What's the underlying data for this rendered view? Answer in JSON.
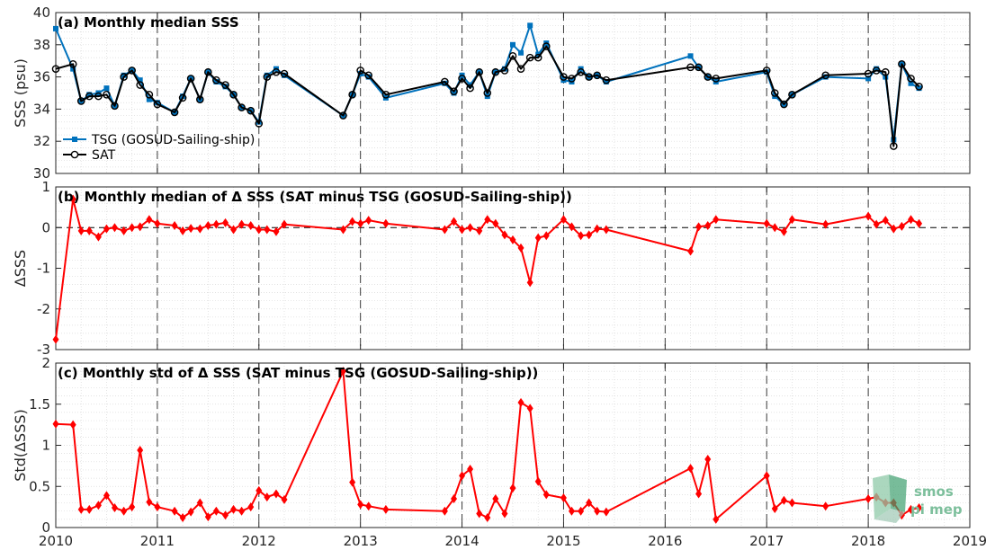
{
  "chart_data": [
    {
      "type": "line",
      "title": "(a) Monthly median SSS",
      "xlabel": "",
      "ylabel": "SSS (psu)",
      "xlim": [
        2010,
        2019
      ],
      "ylim": [
        30,
        40
      ],
      "yticks": [
        30,
        32,
        34,
        36,
        38,
        40
      ],
      "grid": "minor dotted, dashed vertical lines at year boundaries",
      "legend_position": "lower-left",
      "series": [
        {
          "name": "TSG (GOSUD-Sailing-ship)",
          "color": "#0072BD",
          "marker": "filled-square",
          "x": [
            2010.0,
            2010.17,
            2010.25,
            2010.33,
            2010.42,
            2010.5,
            2010.58,
            2010.67,
            2010.75,
            2010.83,
            2010.92,
            2011.0,
            2011.17,
            2011.25,
            2011.33,
            2011.42,
            2011.5,
            2011.58,
            2011.67,
            2011.75,
            2011.83,
            2011.92,
            2012.0,
            2012.08,
            2012.17,
            2012.25,
            2012.83,
            2012.92,
            2013.0,
            2013.08,
            2013.25,
            2013.83,
            2013.92,
            2014.0,
            2014.08,
            2014.17,
            2014.25,
            2014.33,
            2014.42,
            2014.5,
            2014.58,
            2014.67,
            2014.75,
            2014.83,
            2015.0,
            2015.08,
            2015.17,
            2015.25,
            2015.33,
            2015.42,
            2016.25,
            2016.33,
            2016.42,
            2016.5,
            2017.0,
            2017.08,
            2017.17,
            2017.25,
            2017.58,
            2018.0,
            2018.08,
            2018.17,
            2018.25,
            2018.33,
            2018.42,
            2018.5
          ],
          "y": [
            39.0,
            36.5,
            34.5,
            34.9,
            35.0,
            35.3,
            34.2,
            36.1,
            36.4,
            35.8,
            34.6,
            34.4,
            33.8,
            34.8,
            35.9,
            34.6,
            36.3,
            35.7,
            35.4,
            34.9,
            34.1,
            33.9,
            33.2,
            36.1,
            36.5,
            36.1,
            33.6,
            34.9,
            36.2,
            36.0,
            34.7,
            35.6,
            35.0,
            36.1,
            35.5,
            36.3,
            34.8,
            36.3,
            36.5,
            38.0,
            37.5,
            39.2,
            37.4,
            38.1,
            35.8,
            35.7,
            36.5,
            36.0,
            36.1,
            35.7,
            37.3,
            36.6,
            36.0,
            35.7,
            36.3,
            34.8,
            34.3,
            34.9,
            36.0,
            35.9,
            36.5,
            36.0,
            32.1,
            36.8,
            35.6,
            35.3
          ]
        },
        {
          "name": "SAT",
          "color": "#000000",
          "marker": "open-circle",
          "x": [
            2010.0,
            2010.17,
            2010.25,
            2010.33,
            2010.42,
            2010.5,
            2010.58,
            2010.67,
            2010.75,
            2010.83,
            2010.92,
            2011.0,
            2011.17,
            2011.25,
            2011.33,
            2011.42,
            2011.5,
            2011.58,
            2011.67,
            2011.75,
            2011.83,
            2011.92,
            2012.0,
            2012.08,
            2012.17,
            2012.25,
            2012.83,
            2012.92,
            2013.0,
            2013.08,
            2013.25,
            2013.83,
            2013.92,
            2014.0,
            2014.08,
            2014.17,
            2014.25,
            2014.33,
            2014.42,
            2014.5,
            2014.58,
            2014.67,
            2014.75,
            2014.83,
            2015.0,
            2015.08,
            2015.17,
            2015.25,
            2015.33,
            2015.42,
            2016.25,
            2016.33,
            2016.42,
            2016.5,
            2017.0,
            2017.08,
            2017.17,
            2017.25,
            2017.58,
            2018.0,
            2018.08,
            2018.17,
            2018.25,
            2018.33,
            2018.42,
            2018.5
          ],
          "y": [
            36.5,
            36.8,
            34.5,
            34.8,
            34.8,
            34.9,
            34.2,
            36.0,
            36.4,
            35.5,
            34.9,
            34.3,
            33.8,
            34.7,
            35.9,
            34.6,
            36.3,
            35.8,
            35.5,
            34.9,
            34.1,
            33.9,
            33.1,
            36.0,
            36.3,
            36.2,
            33.6,
            34.9,
            36.4,
            36.1,
            34.9,
            35.7,
            35.1,
            35.9,
            35.3,
            36.3,
            35.0,
            36.3,
            36.4,
            37.3,
            36.5,
            37.2,
            37.2,
            37.9,
            36.0,
            35.9,
            36.3,
            36.0,
            36.1,
            35.8,
            36.6,
            36.6,
            36.0,
            35.9,
            36.4,
            35.0,
            34.3,
            34.9,
            36.1,
            36.2,
            36.4,
            36.3,
            31.7,
            36.8,
            35.9,
            35.4
          ]
        }
      ]
    },
    {
      "type": "line",
      "title": "(b) Monthly median of Δ SSS (SAT minus TSG (GOSUD-Sailing-ship))",
      "xlabel": "",
      "ylabel": "ΔSSS",
      "xlim": [
        2010,
        2019
      ],
      "ylim": [
        -3,
        1
      ],
      "yticks": [
        -3,
        -2,
        -1,
        0,
        1
      ],
      "grid": "minor dotted, dashed vertical lines at year boundaries, dashed zero line",
      "series": [
        {
          "color": "#ff0000",
          "marker": "diamond",
          "x": [
            2010.0,
            2010.17,
            2010.25,
            2010.33,
            2010.42,
            2010.5,
            2010.58,
            2010.67,
            2010.75,
            2010.83,
            2010.92,
            2011.0,
            2011.17,
            2011.25,
            2011.33,
            2011.42,
            2011.5,
            2011.58,
            2011.67,
            2011.75,
            2011.83,
            2011.92,
            2012.0,
            2012.08,
            2012.17,
            2012.25,
            2012.83,
            2012.92,
            2013.0,
            2013.08,
            2013.25,
            2013.83,
            2013.92,
            2014.0,
            2014.08,
            2014.17,
            2014.25,
            2014.33,
            2014.42,
            2014.5,
            2014.58,
            2014.67,
            2014.75,
            2014.83,
            2015.0,
            2015.08,
            2015.17,
            2015.25,
            2015.33,
            2015.42,
            2016.25,
            2016.33,
            2016.42,
            2016.5,
            2017.0,
            2017.08,
            2017.17,
            2017.25,
            2017.58,
            2018.0,
            2018.08,
            2018.17,
            2018.25,
            2018.33,
            2018.42,
            2018.5
          ],
          "y": [
            -2.75,
            0.7,
            -0.08,
            -0.08,
            -0.23,
            -0.03,
            0.0,
            -0.08,
            0.0,
            0.02,
            0.2,
            0.1,
            0.05,
            -0.08,
            -0.02,
            -0.03,
            0.05,
            0.08,
            0.12,
            -0.05,
            0.08,
            0.05,
            -0.05,
            -0.05,
            -0.1,
            0.08,
            -0.05,
            0.15,
            0.1,
            0.18,
            0.1,
            -0.05,
            0.15,
            -0.05,
            0.0,
            -0.08,
            0.2,
            0.1,
            -0.18,
            -0.3,
            -0.5,
            -1.35,
            -0.25,
            -0.2,
            0.2,
            0.02,
            -0.2,
            -0.18,
            -0.03,
            -0.05,
            -0.58,
            0.02,
            0.05,
            0.2,
            0.1,
            0.0,
            -0.1,
            0.2,
            0.08,
            0.28,
            0.08,
            0.18,
            -0.03,
            0.03,
            0.2,
            0.1
          ]
        }
      ]
    },
    {
      "type": "line",
      "title": "(c) Monthly std of Δ SSS (SAT minus TSG (GOSUD-Sailing-ship))",
      "xlabel": "",
      "ylabel": "Std(ΔSSS)",
      "xlim": [
        2010,
        2019
      ],
      "ylim": [
        0,
        2
      ],
      "yticks": [
        0,
        0.5,
        1,
        1.5,
        2
      ],
      "grid": "minor dotted, dashed vertical lines at year boundaries",
      "series": [
        {
          "color": "#ff0000",
          "marker": "diamond",
          "x": [
            2010.0,
            2010.17,
            2010.25,
            2010.33,
            2010.42,
            2010.5,
            2010.58,
            2010.67,
            2010.75,
            2010.83,
            2010.92,
            2011.0,
            2011.17,
            2011.25,
            2011.33,
            2011.42,
            2011.5,
            2011.58,
            2011.67,
            2011.75,
            2011.83,
            2011.92,
            2012.0,
            2012.08,
            2012.17,
            2012.25,
            2012.83,
            2012.92,
            2013.0,
            2013.08,
            2013.25,
            2013.83,
            2013.92,
            2014.0,
            2014.08,
            2014.17,
            2014.25,
            2014.33,
            2014.42,
            2014.5,
            2014.58,
            2014.67,
            2014.75,
            2014.83,
            2015.0,
            2015.08,
            2015.17,
            2015.25,
            2015.33,
            2015.42,
            2016.25,
            2016.33,
            2016.42,
            2016.5,
            2017.0,
            2017.08,
            2017.17,
            2017.25,
            2017.58,
            2018.0,
            2018.08,
            2018.17,
            2018.25,
            2018.33,
            2018.42,
            2018.5
          ],
          "y": [
            1.26,
            1.25,
            0.22,
            0.22,
            0.27,
            0.39,
            0.24,
            0.2,
            0.25,
            0.94,
            0.31,
            0.25,
            0.2,
            0.12,
            0.19,
            0.3,
            0.13,
            0.2,
            0.15,
            0.22,
            0.2,
            0.25,
            0.45,
            0.37,
            0.41,
            0.34,
            1.9,
            0.55,
            0.28,
            0.26,
            0.22,
            0.2,
            0.35,
            0.63,
            0.71,
            0.17,
            0.12,
            0.35,
            0.17,
            0.48,
            1.52,
            1.45,
            0.56,
            0.4,
            0.36,
            0.2,
            0.2,
            0.3,
            0.2,
            0.19,
            0.72,
            0.41,
            0.83,
            0.1,
            0.63,
            0.23,
            0.33,
            0.3,
            0.26,
            0.35,
            0.37,
            0.3,
            0.3,
            0.15,
            0.22,
            0.24
          ]
        }
      ]
    }
  ],
  "x_ticks": [
    "2010",
    "2011",
    "2012",
    "2013",
    "2014",
    "2015",
    "2016",
    "2017",
    "2018",
    "2019"
  ],
  "x_tick_values": [
    2010,
    2011,
    2012,
    2013,
    2014,
    2015,
    2016,
    2017,
    2018,
    2019
  ],
  "watermark": {
    "line1": "smos",
    "line2": "pi mep",
    "colors": [
      "#8fc9a8",
      "#3e9f6f",
      "#9ec7b3"
    ]
  }
}
